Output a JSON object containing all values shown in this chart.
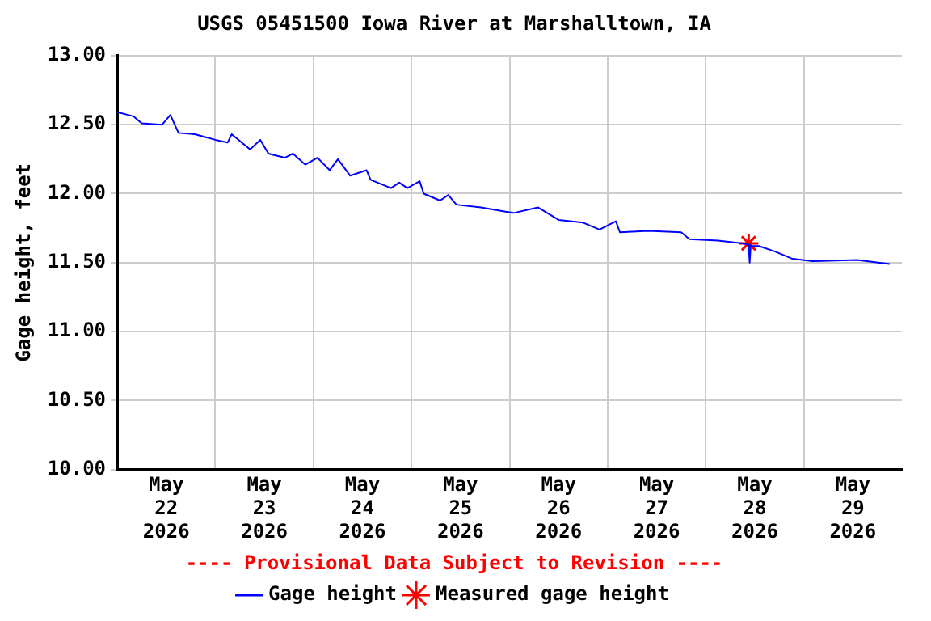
{
  "chart_data": {
    "type": "line",
    "title": "USGS 05451500 Iowa River at Marshalltown, IA",
    "ylabel": "Gage height, feet",
    "annotations": [
      "---- Provisional Data Subject to Revision ----"
    ],
    "xlim": [
      "2026-05-22T00:00",
      "2026-05-30T00:00"
    ],
    "xticks": [
      {
        "value": "2026-05-22T12:00",
        "label": "May\n22\n2026"
      },
      {
        "value": "2026-05-23T00:00",
        "label": null
      },
      {
        "value": "2026-05-23T12:00",
        "label": "May\n23\n2026"
      },
      {
        "value": "2026-05-24T00:00",
        "label": null
      },
      {
        "value": "2026-05-24T12:00",
        "label": "May\n24\n2026"
      },
      {
        "value": "2026-05-25T00:00",
        "label": null
      },
      {
        "value": "2026-05-25T12:00",
        "label": "May\n25\n2026"
      },
      {
        "value": "2026-05-26T00:00",
        "label": null
      },
      {
        "value": "2026-05-26T12:00",
        "label": "May\n26\n2026"
      },
      {
        "value": "2026-05-27T00:00",
        "label": null
      },
      {
        "value": "2026-05-27T12:00",
        "label": "May\n27\n2026"
      },
      {
        "value": "2026-05-28T00:00",
        "label": null
      },
      {
        "value": "2026-05-28T12:00",
        "label": "May\n28\n2026"
      },
      {
        "value": "2026-05-29T00:00",
        "label": null
      },
      {
        "value": "2026-05-29T12:00",
        "label": "May\n29\n2026"
      }
    ],
    "ylim": [
      10,
      13
    ],
    "yticks": [
      {
        "value": 10,
        "label": "10.00"
      },
      {
        "value": 10.5,
        "label": "10.50"
      },
      {
        "value": 11,
        "label": "11.00"
      },
      {
        "value": 11.5,
        "label": "11.50"
      },
      {
        "value": 12,
        "label": "12.00"
      },
      {
        "value": 12.5,
        "label": "12.50"
      },
      {
        "value": 13,
        "label": "13.00"
      }
    ],
    "grid": true,
    "legend": "bottom",
    "series": [
      {
        "name": "Gage height",
        "color": "#0000ff",
        "marker": "none",
        "x": [
          "2026-05-22T00:00",
          "2026-05-22T04:00",
          "2026-05-22T06:00",
          "2026-05-22T11:00",
          "2026-05-22T13:00",
          "2026-05-22T15:00",
          "2026-05-22T19:00",
          "2026-05-23T00:00",
          "2026-05-23T03:00",
          "2026-05-23T04:00",
          "2026-05-23T08:30",
          "2026-05-23T11:00",
          "2026-05-23T13:00",
          "2026-05-23T17:00",
          "2026-05-23T19:00",
          "2026-05-23T22:00",
          "2026-05-24T01:00",
          "2026-05-24T04:00",
          "2026-05-24T06:00",
          "2026-05-24T09:00",
          "2026-05-24T13:00",
          "2026-05-24T14:00",
          "2026-05-24T19:00",
          "2026-05-24T21:00",
          "2026-05-24T23:00",
          "2026-05-25T02:00",
          "2026-05-25T03:00",
          "2026-05-25T07:00",
          "2026-05-25T09:00",
          "2026-05-25T11:00",
          "2026-05-25T17:00",
          "2026-05-25T23:00",
          "2026-05-26T01:00",
          "2026-05-26T07:00",
          "2026-05-26T12:00",
          "2026-05-26T18:00",
          "2026-05-26T22:00",
          "2026-05-27T02:00",
          "2026-05-27T03:00",
          "2026-05-27T10:00",
          "2026-05-27T18:00",
          "2026-05-27T20:00",
          "2026-05-28T03:00",
          "2026-05-28T09:00",
          "2026-05-28T10:30",
          "2026-05-28T10:45",
          "2026-05-28T11:00",
          "2026-05-28T13:00",
          "2026-05-28T17:00",
          "2026-05-28T21:00",
          "2026-05-29T02:00",
          "2026-05-29T13:00",
          "2026-05-29T21:00"
        ],
        "values": [
          12.59,
          12.56,
          12.51,
          12.5,
          12.57,
          12.44,
          12.43,
          12.39,
          12.37,
          12.43,
          12.32,
          12.39,
          12.29,
          12.26,
          12.29,
          12.21,
          12.26,
          12.17,
          12.25,
          12.13,
          12.17,
          12.1,
          12.04,
          12.08,
          12.04,
          12.09,
          12.0,
          11.95,
          11.99,
          11.92,
          11.9,
          11.87,
          11.86,
          11.9,
          11.81,
          11.79,
          11.74,
          11.8,
          11.72,
          11.73,
          11.72,
          11.67,
          11.66,
          11.64,
          11.63,
          11.5,
          11.62,
          11.62,
          11.58,
          11.53,
          11.51,
          11.52,
          11.49
        ]
      },
      {
        "name": "Measured gage height",
        "type": "scatter",
        "color": "#ff0000",
        "marker": "cross",
        "x": [
          "2026-05-28T10:30"
        ],
        "values": [
          11.64
        ]
      }
    ]
  }
}
